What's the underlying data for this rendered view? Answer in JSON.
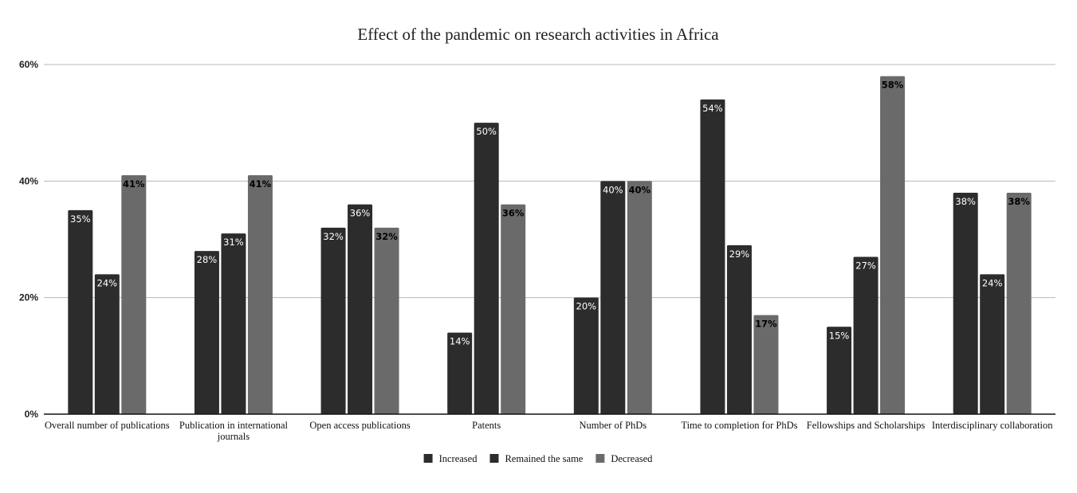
{
  "chart_data": {
    "type": "bar",
    "title": "Effect of the pandemic on research activities in Africa",
    "xlabel": "",
    "ylabel": "",
    "ylim": [
      0,
      60
    ],
    "yticks": [
      0,
      20,
      40,
      60
    ],
    "ytick_labels": [
      "0%",
      "20%",
      "40%",
      "60%"
    ],
    "grid": true,
    "legend_position": "bottom-center",
    "categories": [
      [
        "Overall number of publications"
      ],
      [
        "Publication in international",
        "journals"
      ],
      [
        "Open access publications"
      ],
      [
        "Patents"
      ],
      [
        "Number of PhDs"
      ],
      [
        "Time to completion for PhDs"
      ],
      [
        "Fellowships and Scholarships"
      ],
      [
        "Interdisciplinary collaboration"
      ]
    ],
    "series": [
      {
        "name": "Increased",
        "color": "#2c2c2c",
        "values": [
          35,
          28,
          32,
          14,
          20,
          54,
          15,
          38
        ],
        "labels": [
          "35%",
          "28%",
          "32%",
          "14%",
          "20%",
          "54%",
          "15%",
          "38%"
        ]
      },
      {
        "name": "Remained the same",
        "color": "#2c2c2c",
        "values": [
          24,
          31,
          36,
          50,
          40,
          29,
          27,
          24
        ],
        "labels": [
          "24%",
          "31%",
          "36%",
          "50%",
          "40%",
          "29%",
          "27%",
          "24%"
        ]
      },
      {
        "name": "Decreased",
        "color": "#6a6a6a",
        "values": [
          41,
          41,
          32,
          36,
          40,
          17,
          58,
          38
        ],
        "labels": [
          "41%",
          "41%",
          "32%",
          "36%",
          "40%",
          "17%",
          "58%",
          "38%"
        ]
      }
    ]
  }
}
